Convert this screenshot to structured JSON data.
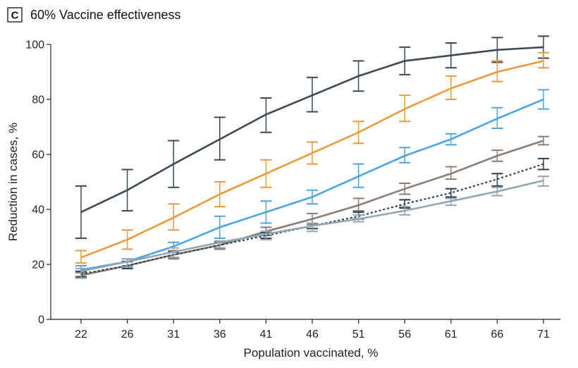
{
  "panel": {
    "letter": "C",
    "title": "60% Vaccine effectiveness"
  },
  "chart_data": {
    "type": "line",
    "title": "60% Vaccine effectiveness",
    "xlabel": "Population vaccinated, %",
    "ylabel": "Reduction in cases, %",
    "ylim": [
      0,
      100
    ],
    "yticks": [
      0,
      20,
      40,
      60,
      80,
      100
    ],
    "categories": [
      "22",
      "26",
      "31",
      "36",
      "41",
      "46",
      "51",
      "56",
      "61",
      "66",
      "71"
    ],
    "grid": false,
    "series": [
      {
        "name": "series-1",
        "color": "#3a4a57",
        "dash": "none",
        "values": [
          39,
          47,
          56.5,
          65.5,
          74.5,
          81.5,
          88.5,
          94,
          96,
          98,
          99
        ],
        "err_low": [
          29.5,
          39.5,
          48,
          58,
          68,
          75.5,
          83,
          89,
          91.5,
          93.5,
          95
        ],
        "err_high": [
          48.5,
          54.5,
          65,
          73.5,
          80.5,
          88,
          94,
          99,
          100.5,
          102.5,
          103
        ]
      },
      {
        "name": "series-2",
        "color": "#e89a3c",
        "dash": "none",
        "values": [
          22.5,
          29,
          37,
          45.5,
          53,
          60.5,
          68,
          76.5,
          84,
          90,
          94
        ],
        "err_low": [
          20.5,
          25.5,
          32.5,
          41,
          48,
          56.5,
          64,
          72,
          80,
          86.5,
          91.5
        ],
        "err_high": [
          25,
          32.5,
          42,
          50,
          58,
          64.5,
          72,
          81.5,
          88.5,
          94,
          97
        ]
      },
      {
        "name": "series-3",
        "color": "#4aa6e0",
        "dash": "none",
        "values": [
          18,
          21,
          26.5,
          33.5,
          39,
          44.5,
          52,
          59.5,
          65.5,
          73,
          80
        ],
        "err_low": [
          17,
          19.5,
          25,
          29.5,
          35,
          42,
          48,
          57,
          63.5,
          69.5,
          76.5
        ],
        "err_high": [
          19.5,
          22,
          28,
          37.5,
          43,
          47,
          56.5,
          62.5,
          67.5,
          77,
          83.5
        ]
      },
      {
        "name": "series-4",
        "color": "#8a7c72",
        "dash": "none",
        "values": [
          16,
          19.5,
          23.5,
          27,
          32,
          36.5,
          41.5,
          47.5,
          53,
          59.5,
          65
        ],
        "err_low": [
          15,
          18.5,
          22,
          25.5,
          30.5,
          34.5,
          39.5,
          45.5,
          51,
          57.5,
          63.5
        ],
        "err_high": [
          17,
          21,
          25,
          28.5,
          33.5,
          38.5,
          44,
          49.5,
          55.5,
          61.5,
          66.5
        ]
      },
      {
        "name": "series-5",
        "color": "#2f3e4c",
        "dash": "3,3",
        "values": [
          16.5,
          19.5,
          23.5,
          27,
          30.5,
          34,
          37.5,
          42,
          46,
          51,
          56.5
        ],
        "err_low": [
          15.5,
          18.5,
          22.5,
          26,
          29.5,
          33,
          36.5,
          40.5,
          44.5,
          48.5,
          54.5
        ],
        "err_high": [
          17.5,
          21,
          24.5,
          28,
          31.5,
          35,
          39,
          43.5,
          47.5,
          53,
          58.5
        ]
      },
      {
        "name": "series-6",
        "color": "#8fa6b5",
        "dash": "none",
        "values": [
          17.5,
          21,
          24.5,
          28,
          31,
          34,
          36.5,
          39.5,
          43,
          46.5,
          50.5
        ],
        "err_low": [
          15,
          19,
          22.5,
          26,
          29,
          32,
          35.5,
          38,
          41.5,
          45,
          48.5
        ],
        "err_high": [
          18.5,
          22,
          26,
          28.5,
          32,
          35,
          38,
          41,
          44,
          48,
          52
        ]
      }
    ]
  }
}
